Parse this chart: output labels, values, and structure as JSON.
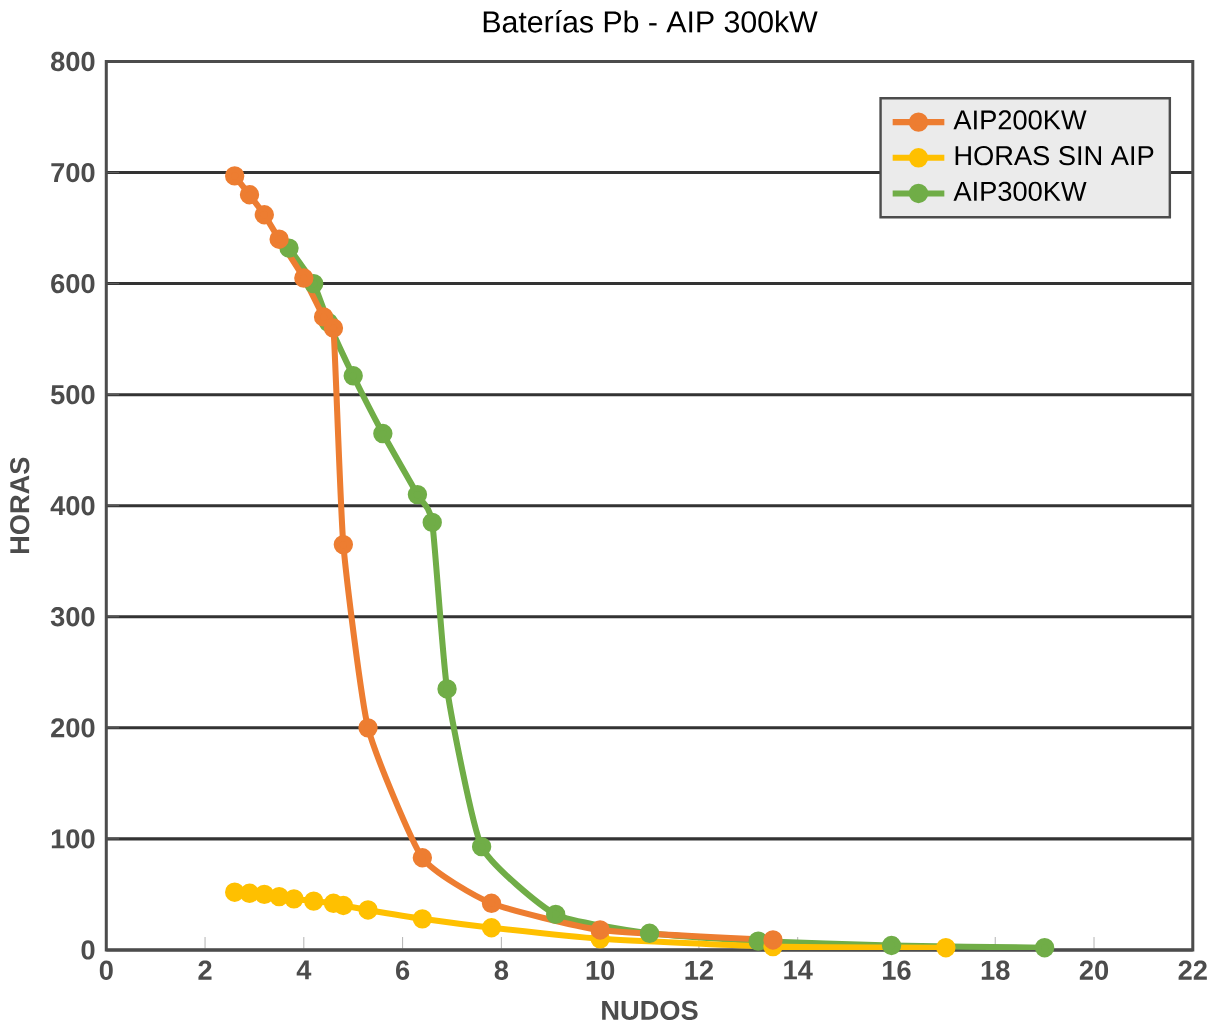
{
  "chart_data": {
    "type": "line",
    "title": "Baterías Pb - AIP 300kW",
    "xlabel": "NUDOS",
    "ylabel": "HORAS",
    "xlim": [
      0,
      22
    ],
    "xticks": [
      0,
      2,
      4,
      6,
      8,
      10,
      12,
      14,
      16,
      18,
      20,
      22
    ],
    "ylim": [
      0,
      800
    ],
    "yticks": [
      0,
      100,
      200,
      300,
      400,
      500,
      600,
      700,
      800
    ],
    "grid": "y",
    "legend": "top right",
    "marker": "circle",
    "series": [
      {
        "name": "AIP200KW",
        "color": "#ed7d31",
        "x": [
          2.6,
          2.9,
          3.2,
          3.5,
          4.0,
          4.4,
          4.6,
          4.8,
          5.3,
          6.4,
          7.8,
          10,
          13.5
        ],
        "values": [
          697,
          680,
          662,
          640,
          605,
          570,
          560,
          365,
          200,
          83,
          42,
          18,
          9
        ]
      },
      {
        "name": "HORAS SIN AIP",
        "color": "#ffc000",
        "x": [
          2.6,
          2.9,
          3.2,
          3.5,
          3.8,
          4.2,
          4.6,
          4.8,
          5.3,
          6.4,
          7.8,
          10,
          13.5,
          17
        ],
        "values": [
          52,
          51,
          50,
          48,
          46,
          44,
          42,
          40,
          36,
          28,
          20,
          10,
          3,
          2
        ]
      },
      {
        "name": "AIP300KW",
        "color": "#70ad47",
        "x": [
          3.7,
          4.2,
          4.5,
          5.0,
          5.6,
          6.3,
          6.6,
          6.9,
          7.6,
          9.1,
          11,
          13.2,
          15.9,
          19
        ],
        "values": [
          632,
          600,
          565,
          517,
          465,
          410,
          385,
          235,
          93,
          32,
          15,
          8,
          4,
          2
        ]
      }
    ]
  }
}
